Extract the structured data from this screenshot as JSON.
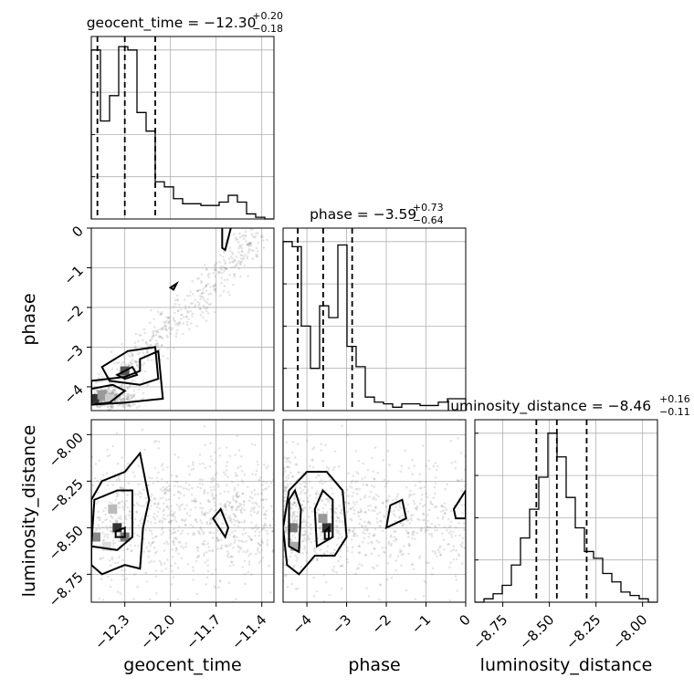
{
  "chart_data": {
    "type": "corner",
    "parameters": [
      "geocent_time",
      "phase",
      "luminosity_distance"
    ],
    "ranges": {
      "geocent_time": [
        -12.52,
        -11.32
      ],
      "phase": [
        -4.6,
        0.0
      ],
      "luminosity_distance": [
        -8.9,
        -7.92
      ]
    },
    "ticks": {
      "geocent_time": [
        -12.3,
        -12.0,
        -11.7,
        -11.4
      ],
      "phase": [
        -4,
        -3,
        -2,
        -1,
        0
      ],
      "luminosity_distance": [
        -8.75,
        -8.5,
        -8.25,
        -8.0
      ]
    },
    "tick_labels": {
      "geocent_time": [
        "−12.3",
        "−12.0",
        "−11.7",
        "−11.4"
      ],
      "phase": [
        "−4",
        "−3",
        "−2",
        "−1",
        "0"
      ],
      "luminosity_distance": [
        "−8.75",
        "−8.50",
        "−8.25",
        "−8.00"
      ]
    },
    "axis_labels": {
      "geocent_time": "geocent_time",
      "phase": "phase",
      "luminosity_distance": "luminosity_distance"
    },
    "titles": [
      {
        "param": "geocent_time",
        "text": "geocent_time = −12.30",
        "plus": "+0.20",
        "minus": "−0.18"
      },
      {
        "param": "phase",
        "text": "phase = −3.59",
        "plus": "+0.73",
        "minus": "−0.64"
      },
      {
        "param": "luminosity_distance",
        "text": "luminosity_distance = −8.46",
        "plus": "+0.16",
        "minus": "−0.11"
      }
    ],
    "histograms": {
      "geocent_time": {
        "edges": [
          -12.52,
          -12.46,
          -12.4,
          -12.34,
          -12.28,
          -12.22,
          -12.16,
          -12.1,
          -12.04,
          -11.98,
          -11.92,
          -11.86,
          -11.8,
          -11.74,
          -11.68,
          -11.62,
          -11.56,
          -11.5,
          -11.44,
          -11.38,
          -11.32
        ],
        "counts": [
          1.0,
          0.58,
          0.73,
          1.02,
          1.0,
          0.63,
          0.52,
          0.22,
          0.19,
          0.12,
          0.09,
          0.09,
          0.08,
          0.08,
          0.1,
          0.14,
          0.1,
          0.03,
          0.01,
          0.0
        ]
      },
      "phase": {
        "edges": [
          -4.6,
          -4.37,
          -4.14,
          -3.91,
          -3.68,
          -3.45,
          -3.22,
          -2.99,
          -2.76,
          -2.53,
          -2.3,
          -2.07,
          -1.84,
          -1.61,
          -1.38,
          -1.15,
          -0.92,
          -0.69,
          -0.46,
          -0.23,
          0.0
        ],
        "counts": [
          1.0,
          0.97,
          0.5,
          0.25,
          0.62,
          0.55,
          0.98,
          0.38,
          0.26,
          0.08,
          0.05,
          0.04,
          0.02,
          0.04,
          0.04,
          0.03,
          0.03,
          0.05,
          0.07,
          0.07
        ]
      },
      "luminosity_distance": {
        "edges": [
          -8.9,
          -8.851,
          -8.802,
          -8.753,
          -8.704,
          -8.655,
          -8.606,
          -8.557,
          -8.508,
          -8.459,
          -8.41,
          -8.361,
          -8.312,
          -8.263,
          -8.214,
          -8.165,
          -8.116,
          -8.067,
          -8.018,
          -7.969,
          -7.92
        ],
        "counts": [
          0.0,
          0.02,
          0.05,
          0.1,
          0.22,
          0.38,
          0.55,
          0.74,
          1.0,
          0.86,
          0.62,
          0.44,
          0.3,
          0.26,
          0.17,
          0.12,
          0.06,
          0.04,
          0.02,
          0.0
        ]
      }
    },
    "quantiles": {
      "geocent_time": [
        -12.48,
        -12.3,
        -12.1
      ],
      "phase": [
        -4.23,
        -3.59,
        -2.86
      ],
      "luminosity_distance": [
        -8.57,
        -8.46,
        -8.3
      ]
    }
  }
}
